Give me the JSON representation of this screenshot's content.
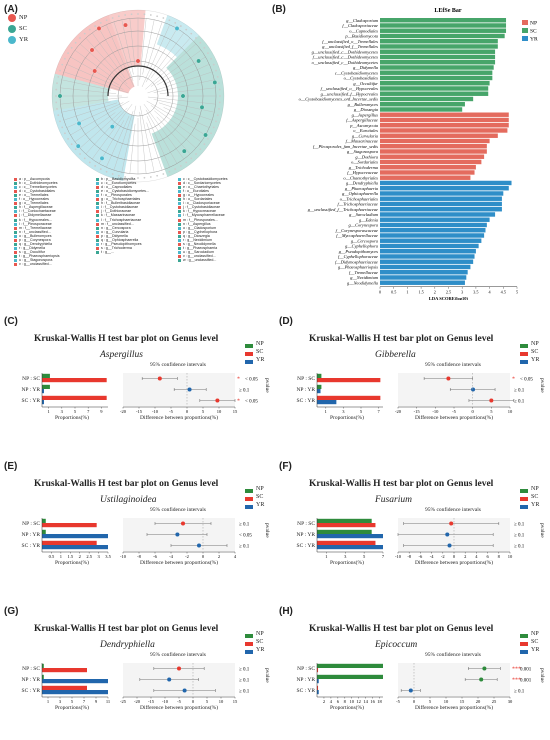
{
  "panels": {
    "A": {
      "label": "(A)"
    },
    "B": {
      "label": "(B)"
    },
    "C": {
      "label": "(C)"
    },
    "D": {
      "label": "(D)"
    },
    "E": {
      "label": "(E)"
    },
    "F": {
      "label": "(F)"
    },
    "G": {
      "label": "(G)"
    },
    "H": {
      "label": "(H)"
    }
  },
  "colors": {
    "NP": "#e8574f",
    "SC": "#3aa694",
    "YR": "#4bb8cc",
    "lefse_np": "#e46b5e",
    "lefse_sc": "#47a56a",
    "lefse_yr": "#2f8ec8",
    "green": "#2e8b3c",
    "red": "#e8382e",
    "blue": "#2166ac"
  },
  "cladogram": {
    "legend": [
      {
        "key": "NP",
        "label": "NP"
      },
      {
        "key": "SC",
        "label": "SC"
      },
      {
        "key": "YR",
        "label": "YR"
      }
    ],
    "taxa_col1": [
      "a : p__Ascomycota",
      "b : c__Dothideomycetes",
      "c : c__Tremellomycetes",
      "d : c__Cystobasidiales",
      "e : o__Tremellales",
      "f : o__Hypocreales",
      "g : o__Tremellales",
      "h : f__Aspergillaceae",
      "i : f__Coniochaetaceae",
      "j : f__Didymellaceae",
      "k : f__Hypocreales...",
      "l : f__Pleosporaceae",
      "m : f__Tremellaceae",
      "n : f__unclassified...",
      "o : g__Bulleromyces",
      "p : g__Corynespora",
      "q : g__Dendryphiella",
      "r : g__Didymella",
      "s : g__Occultifur",
      "t : g__Phaeosphaeriopsis",
      "u : g__Stagonospora",
      "v : g__unclassified..."
    ],
    "taxa_col2": [
      "b : p__Basidiomycota",
      "c : c__Eurotiomycetes",
      "d : o__Capnodiales",
      "e : o__Cystobasidiomycetes...",
      "f : o__Pleosporales",
      "g : o__Trichosphaeriales",
      "h : f__Bulleribasidiaceae",
      "i : f__Cystobasidiaceae",
      "j : f__Dothioraceae",
      "k : f__Massarinaceae",
      "l : f__Trichosphaeriaceae",
      "m : f__unclassified...",
      "n : g__Cercospora",
      "o : g__Curvularia",
      "p : g__Didymella",
      "q : g__Ophiosphaerella",
      "r : g__Pseudopithomyces",
      "s : g__Trichoderma",
      "t : g__..."
    ],
    "taxa_col3": [
      "c : c__Cystobasidiomycetes",
      "d : c__Sordariomycetes",
      "e : o__Chaetothyriales",
      "f : o__Eurotiales",
      "g : o__Hypocreales",
      "h : o__Sordariales",
      "i : o__Cladosporiaceae",
      "j : f__Cystobasidiaceae",
      "k : f__Hypocreaceae",
      "l : f__Mycosphaerellaceae",
      "m : f__Pleosporales...",
      "n : f__Aspergillus",
      "o : g__Cladosporium",
      "p : g__Cyphellophora",
      "q : g__Dioszegia",
      "r : g__Nexidimium",
      "s : g__Neodidymella",
      "t : g__Phaeosphaeria",
      "u : g__Sarocladium",
      "v : g__unclassified...",
      "w : g__unclassified..."
    ]
  },
  "lefse": {
    "title": "LEfSe Bar",
    "xlabel": "LDA SCORE(log10)",
    "legend": [
      {
        "key": "NP",
        "label": "NP"
      },
      {
        "key": "SC",
        "label": "SC"
      },
      {
        "key": "YR",
        "label": "YR"
      }
    ],
    "xticks": [
      "0",
      "0.5",
      "1",
      "1.5",
      "2",
      "2.5",
      "3",
      "3.5",
      "4",
      "4.5",
      "5"
    ],
    "xlim": [
      0,
      5
    ],
    "bars": [
      {
        "label": "g__Cladosporium",
        "value": 4.6,
        "group": "SC"
      },
      {
        "label": "f__Cladosporiaceae",
        "value": 4.6,
        "group": "SC"
      },
      {
        "label": "o__Capnodiales",
        "value": 4.6,
        "group": "SC"
      },
      {
        "label": "p__Basidiomycota",
        "value": 4.55,
        "group": "SC"
      },
      {
        "label": "f__unclassified_o__Tremellales",
        "value": 4.3,
        "group": "SC"
      },
      {
        "label": "g__unclassified_f__Tremellales",
        "value": 4.3,
        "group": "SC"
      },
      {
        "label": "g__unclassified_c__Dothideomycetes",
        "value": 4.2,
        "group": "SC"
      },
      {
        "label": "f__unclassified_c__Dothideomycetes",
        "value": 4.2,
        "group": "SC"
      },
      {
        "label": "o__unclassified_c__Dothideomycetes",
        "value": 4.2,
        "group": "SC"
      },
      {
        "label": "g__Didymella",
        "value": 4.15,
        "group": "SC"
      },
      {
        "label": "c__Cystobasidiomycetes",
        "value": 4.1,
        "group": "SC"
      },
      {
        "label": "o__Cystobasidiales",
        "value": 4.1,
        "group": "SC"
      },
      {
        "label": "g__Occultifur",
        "value": 4.0,
        "group": "SC"
      },
      {
        "label": "f__unclassified_o__Hypocreales",
        "value": 3.95,
        "group": "SC"
      },
      {
        "label": "g__unclassified_f__Hypocreales",
        "value": 3.95,
        "group": "SC"
      },
      {
        "label": "o__Cystobasidiomycetes_ord_Incertae_sedis",
        "value": 3.4,
        "group": "SC"
      },
      {
        "label": "g__Bulleromyces",
        "value": 3.1,
        "group": "SC"
      },
      {
        "label": "g__Dioszegia",
        "value": 3.0,
        "group": "SC"
      },
      {
        "label": "g__Aspergillus",
        "value": 4.7,
        "group": "NP"
      },
      {
        "label": "f__Aspergillaceae",
        "value": 4.7,
        "group": "NP"
      },
      {
        "label": "p__Ascomycota",
        "value": 4.7,
        "group": "NP"
      },
      {
        "label": "o__Eurotiales",
        "value": 4.65,
        "group": "NP"
      },
      {
        "label": "g__Curvularia",
        "value": 4.3,
        "group": "NP"
      },
      {
        "label": "f__Massarinaceae",
        "value": 4.0,
        "group": "NP"
      },
      {
        "label": "f__Pleosporales_fam_Incertae_sedis",
        "value": 3.9,
        "group": "NP"
      },
      {
        "label": "g__Stagonospora",
        "value": 3.9,
        "group": "NP"
      },
      {
        "label": "g__Dothiora",
        "value": 3.8,
        "group": "NP"
      },
      {
        "label": "o__Sordariales",
        "value": 3.7,
        "group": "NP"
      },
      {
        "label": "g__Trichoderma",
        "value": 3.5,
        "group": "NP"
      },
      {
        "label": "f__Hypocreaceae",
        "value": 3.45,
        "group": "NP"
      },
      {
        "label": "o__Chaetothyriales",
        "value": 3.3,
        "group": "NP"
      },
      {
        "label": "g__Dendryphiella",
        "value": 4.8,
        "group": "YR"
      },
      {
        "label": "g__Phaeosphaeria",
        "value": 4.7,
        "group": "YR"
      },
      {
        "label": "g__Ophiosphaerella",
        "value": 4.5,
        "group": "YR"
      },
      {
        "label": "o__Trichosphaeriales",
        "value": 4.45,
        "group": "YR"
      },
      {
        "label": "f__Trichosphaeriaceae",
        "value": 4.45,
        "group": "YR"
      },
      {
        "label": "g__unclassified_f__Trichosphaeriaceae",
        "value": 4.45,
        "group": "YR"
      },
      {
        "label": "g__Sarocladium",
        "value": 4.2,
        "group": "YR"
      },
      {
        "label": "g__Edenia",
        "value": 4.0,
        "group": "YR"
      },
      {
        "label": "g__Corynespora",
        "value": 3.9,
        "group": "YR"
      },
      {
        "label": "f__Corynesporascaceae",
        "value": 3.85,
        "group": "YR"
      },
      {
        "label": "f__Mycosphaerellaceae",
        "value": 3.8,
        "group": "YR"
      },
      {
        "label": "g__Cercospora",
        "value": 3.7,
        "group": "YR"
      },
      {
        "label": "g__Cyphellophora",
        "value": 3.6,
        "group": "YR"
      },
      {
        "label": "g__Pseudopithomyces",
        "value": 3.5,
        "group": "YR"
      },
      {
        "label": "f__Cyphellophoraceae",
        "value": 3.45,
        "group": "YR"
      },
      {
        "label": "f__Didymosphaeriaceae",
        "value": 3.4,
        "group": "YR"
      },
      {
        "label": "g__Phaeosphaeriopsis",
        "value": 3.3,
        "group": "YR"
      },
      {
        "label": "f__Tremellaceae",
        "value": 3.2,
        "group": "YR"
      },
      {
        "label": "g__Nexidimium",
        "value": 3.15,
        "group": "YR"
      },
      {
        "label": "g__Neodidymella",
        "value": 3.1,
        "group": "YR"
      }
    ]
  },
  "kw_title": "Kruskal-Wallis H test bar plot on Genus level",
  "ci_label": "95% confidence intervals",
  "prop_label": "Proportions(%)",
  "diff_label": "Difference between proportions(%)",
  "pvalue_label": "pvalue",
  "kw_legend": [
    {
      "key": "NP",
      "label": "NP"
    },
    {
      "key": "SC",
      "label": "SC"
    },
    {
      "key": "YR",
      "label": "YR"
    }
  ],
  "row_labels": [
    "NP : SC",
    "NP : YR",
    "SC : YR"
  ],
  "chart_data": [
    {
      "id": "C",
      "genus": "Aspergillus",
      "type": "bar",
      "prop_ticks": [
        "1",
        "3",
        "5",
        "7",
        "9"
      ],
      "prop_max": 10,
      "bars": [
        {
          "row": 0,
          "a": {
            "group": "NP",
            "value": 1.2
          },
          "b": {
            "group": "SC",
            "value": 9.8
          }
        },
        {
          "row": 1,
          "a": {
            "group": "NP",
            "value": 1.2
          },
          "b": {
            "group": "YR",
            "value": 0.3
          }
        },
        {
          "row": 2,
          "a": {
            "group": "SC",
            "value": 9.8
          },
          "b": {
            "group": "YR",
            "value": 0.3
          }
        }
      ],
      "diff_ticks": [
        "-20",
        "-15",
        "-10",
        "-5",
        "0",
        "5",
        "10",
        "15"
      ],
      "diff_range": [
        -20,
        15
      ],
      "diffs": [
        {
          "row": 0,
          "mean": -8.5,
          "lo": -14,
          "hi": -3,
          "color": "red"
        },
        {
          "row": 1,
          "mean": 0.8,
          "lo": -4,
          "hi": 6,
          "color": "blue"
        },
        {
          "row": 2,
          "mean": 9.5,
          "lo": 4,
          "hi": 15,
          "color": "red"
        }
      ],
      "pvalues": [
        "< 0.05",
        "≥ 0.1",
        "< 0.05"
      ],
      "stars": [
        "*",
        "",
        "*"
      ]
    },
    {
      "id": "D",
      "genus": "Gibberella",
      "type": "bar",
      "prop_ticks": [
        "1",
        "3",
        "5",
        "7"
      ],
      "prop_max": 7.5,
      "bars": [
        {
          "row": 0,
          "a": {
            "group": "NP",
            "value": 0.5
          },
          "b": {
            "group": "SC",
            "value": 7.2
          }
        },
        {
          "row": 1,
          "a": {
            "group": "NP",
            "value": 0.5
          },
          "b": {
            "group": "YR",
            "value": 0.4
          }
        },
        {
          "row": 2,
          "a": {
            "group": "SC",
            "value": 7.2
          },
          "b": {
            "group": "YR",
            "value": 2.2
          }
        }
      ],
      "diff_ticks": [
        "-20",
        "-15",
        "-10",
        "-5",
        "0",
        "5",
        "10"
      ],
      "diff_range": [
        -20,
        10
      ],
      "diffs": [
        {
          "row": 0,
          "mean": -6.5,
          "lo": -13,
          "hi": 0,
          "color": "red"
        },
        {
          "row": 1,
          "mean": 0.1,
          "lo": -6,
          "hi": 6,
          "color": "blue"
        },
        {
          "row": 2,
          "mean": 5,
          "lo": -1,
          "hi": 11,
          "color": "red"
        }
      ],
      "pvalues": [
        "< 0.05",
        "≥ 0.1",
        "≥ 0.1"
      ],
      "stars": [
        "*",
        "",
        ""
      ]
    },
    {
      "id": "E",
      "genus": "Ustilaginoidea",
      "type": "bar",
      "prop_ticks": [
        "0.5",
        "1",
        "1.5",
        "2",
        "2.5",
        "3",
        "3.5"
      ],
      "prop_max": 3.5,
      "bars": [
        {
          "row": 0,
          "a": {
            "group": "NP",
            "value": 0.2
          },
          "b": {
            "group": "SC",
            "value": 2.9
          }
        },
        {
          "row": 1,
          "a": {
            "group": "NP",
            "value": 0.2
          },
          "b": {
            "group": "YR",
            "value": 3.5
          }
        },
        {
          "row": 2,
          "a": {
            "group": "SC",
            "value": 2.9
          },
          "b": {
            "group": "YR",
            "value": 3.5
          }
        }
      ],
      "diff_ticks": [
        "-10",
        "-8",
        "-6",
        "-4",
        "-2",
        "0",
        "2",
        "4"
      ],
      "diff_range": [
        -10,
        4
      ],
      "diffs": [
        {
          "row": 0,
          "mean": -2.5,
          "lo": -6,
          "hi": 1,
          "color": "red"
        },
        {
          "row": 1,
          "mean": -3.2,
          "lo": -7,
          "hi": 0.5,
          "color": "blue"
        },
        {
          "row": 2,
          "mean": -0.5,
          "lo": -4,
          "hi": 3,
          "color": "blue"
        }
      ],
      "pvalues": [
        "≥ 0.1",
        "< 0.05",
        "≥ 0.1"
      ],
      "stars": [
        "",
        "",
        ""
      ]
    },
    {
      "id": "F",
      "genus": "Fusarium",
      "type": "bar",
      "prop_ticks": [
        "1",
        "3",
        "5",
        "7"
      ],
      "prop_max": 7,
      "bars": [
        {
          "row": 0,
          "a": {
            "group": "NP",
            "value": 5.8
          },
          "b": {
            "group": "SC",
            "value": 6.2
          }
        },
        {
          "row": 1,
          "a": {
            "group": "NP",
            "value": 5.8
          },
          "b": {
            "group": "YR",
            "value": 7.0
          }
        },
        {
          "row": 2,
          "a": {
            "group": "SC",
            "value": 6.2
          },
          "b": {
            "group": "YR",
            "value": 7.0
          }
        }
      ],
      "diff_ticks": [
        "-10",
        "-8",
        "-6",
        "-4",
        "-2",
        "0",
        "2",
        "4",
        "6",
        "8",
        "10"
      ],
      "diff_range": [
        -10,
        10
      ],
      "diffs": [
        {
          "row": 0,
          "mean": -0.5,
          "lo": -9,
          "hi": 8,
          "color": "red"
        },
        {
          "row": 1,
          "mean": -1.2,
          "lo": -10,
          "hi": 7,
          "color": "blue"
        },
        {
          "row": 2,
          "mean": -0.8,
          "lo": -9,
          "hi": 7,
          "color": "blue"
        }
      ],
      "pvalues": [
        "≥ 0.1",
        "≥ 0.1",
        "≥ 0.1"
      ],
      "stars": [
        "",
        "",
        ""
      ]
    },
    {
      "id": "G",
      "genus": "Dendryphiella",
      "type": "bar",
      "prop_ticks": [
        "1",
        "3",
        "5",
        "7",
        "9",
        "11"
      ],
      "prop_max": 11,
      "bars": [
        {
          "row": 0,
          "a": {
            "group": "NP",
            "value": 0.3
          },
          "b": {
            "group": "SC",
            "value": 7.5
          }
        },
        {
          "row": 1,
          "a": {
            "group": "NP",
            "value": 0.3
          },
          "b": {
            "group": "YR",
            "value": 11
          }
        },
        {
          "row": 2,
          "a": {
            "group": "SC",
            "value": 7.5
          },
          "b": {
            "group": "YR",
            "value": 11
          }
        }
      ],
      "diff_ticks": [
        "-25",
        "-20",
        "-15",
        "-10",
        "-5",
        "0",
        "5",
        "10",
        "15"
      ],
      "diff_range": [
        -25,
        15
      ],
      "diffs": [
        {
          "row": 0,
          "mean": -5,
          "lo": -14,
          "hi": 4,
          "color": "red"
        },
        {
          "row": 1,
          "mean": -8.5,
          "lo": -19,
          "hi": 2,
          "color": "blue"
        },
        {
          "row": 2,
          "mean": -3,
          "lo": -14,
          "hi": 8,
          "color": "blue"
        }
      ],
      "pvalues": [
        "≥ 0.1",
        "≥ 0.1",
        "≥ 0.1"
      ],
      "stars": [
        "",
        "",
        ""
      ]
    },
    {
      "id": "H",
      "genus": "Epicoccum",
      "type": "bar",
      "prop_ticks": [
        "2",
        "4",
        "6",
        "8",
        "10",
        "12",
        "14",
        "16",
        "18"
      ],
      "prop_max": 19,
      "bars": [
        {
          "row": 0,
          "a": {
            "group": "NP",
            "value": 19
          },
          "b": {
            "group": "SC",
            "value": 0.3
          }
        },
        {
          "row": 1,
          "a": {
            "group": "NP",
            "value": 19
          },
          "b": {
            "group": "YR",
            "value": 0.5
          }
        },
        {
          "row": 2,
          "a": {
            "group": "SC",
            "value": 0.3
          },
          "b": {
            "group": "YR",
            "value": 0.5
          }
        }
      ],
      "diff_ticks": [
        "-5",
        "0",
        "5",
        "10",
        "15",
        "20",
        "25",
        "30"
      ],
      "diff_range": [
        -5,
        30
      ],
      "diffs": [
        {
          "row": 0,
          "mean": 22,
          "lo": 17,
          "hi": 27,
          "color": "green"
        },
        {
          "row": 1,
          "mean": 21,
          "lo": 16,
          "hi": 26,
          "color": "green"
        },
        {
          "row": 2,
          "mean": -1,
          "lo": -4,
          "hi": 2,
          "color": "blue"
        }
      ],
      "pvalues": [
        "0.001",
        "0.001",
        "≥ 0.1"
      ],
      "stars": [
        "***",
        "***",
        ""
      ]
    }
  ]
}
